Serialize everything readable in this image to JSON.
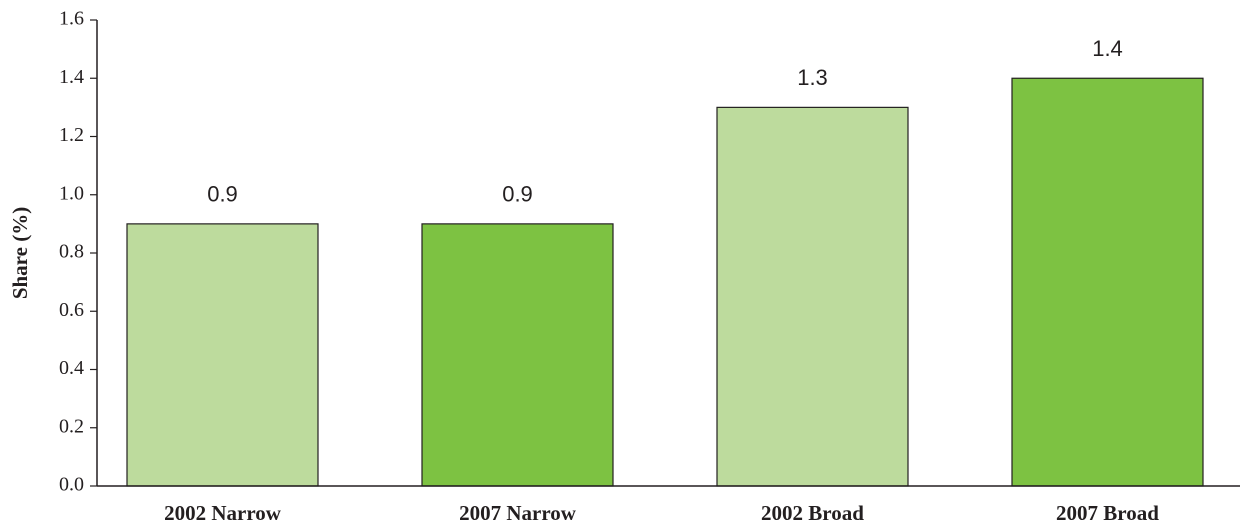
{
  "chart_data": {
    "type": "bar",
    "y_label": "Share (%)",
    "categories": [
      "2002 Narrow",
      "2007 Narrow",
      "2002 Broad",
      "2007 Broad"
    ],
    "values": [
      0.9,
      0.9,
      1.3,
      1.4
    ],
    "colors": [
      "#bddb9d",
      "#7dc242",
      "#bddb9d",
      "#7dc242"
    ],
    "ylim": [
      0,
      1.6
    ],
    "yticks": [
      {
        "value": 0,
        "label": "0.0"
      },
      0.2,
      0.4,
      0.6,
      0.8,
      {
        "value": 1,
        "label": "1.0"
      },
      1.2,
      1.4,
      1.6
    ],
    "grid": false
  }
}
